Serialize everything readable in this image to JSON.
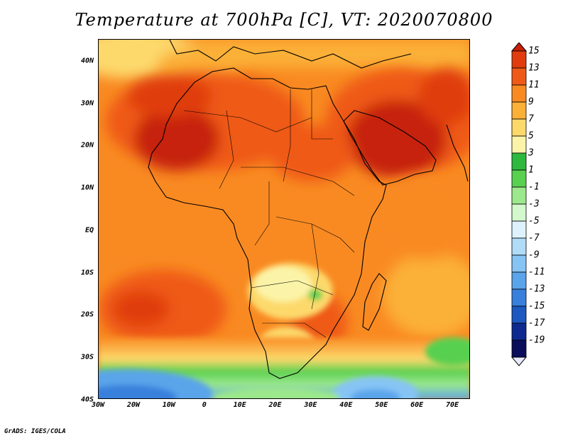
{
  "title": "Temperature at 700hPa [C], VT: 2020070800",
  "credit": "GrADS: IGES/COLA",
  "axes": {
    "lat_ticks": [
      "40N",
      "30N",
      "20N",
      "10N",
      "EQ",
      "10S",
      "20S",
      "30S",
      "40S"
    ],
    "lat_values": [
      40,
      30,
      20,
      10,
      0,
      -10,
      -20,
      -30,
      -40
    ],
    "lon_ticks": [
      "30W",
      "20W",
      "10W",
      "0",
      "10E",
      "20E",
      "30E",
      "40E",
      "50E",
      "60E",
      "70E"
    ],
    "lon_values": [
      -30,
      -20,
      -10,
      0,
      10,
      20,
      30,
      40,
      50,
      60,
      70
    ],
    "lat_range": [
      -40,
      45
    ],
    "lon_range": [
      -30,
      75
    ]
  },
  "colorbar": {
    "labels": [
      "15",
      "13",
      "11",
      "9",
      "7",
      "5",
      "3",
      "1",
      "-1",
      "-3",
      "-5",
      "-7",
      "-9",
      "-11",
      "-13",
      "-15",
      "-17",
      "-19"
    ],
    "colors": [
      "#c62008",
      "#e03c10",
      "#ef5a18",
      "#f98a22",
      "#fbb038",
      "#fdd96c",
      "#fbf4a8",
      "#2eb83e",
      "#59d050",
      "#9ce88c",
      "#d2f8cc",
      "#ddf2fc",
      "#b0dcf8",
      "#86c4f4",
      "#5aa4ea",
      "#3880dc",
      "#1c58c0",
      "#0e2a90",
      "#0a0d5a",
      "#e8eaff"
    ]
  }
}
